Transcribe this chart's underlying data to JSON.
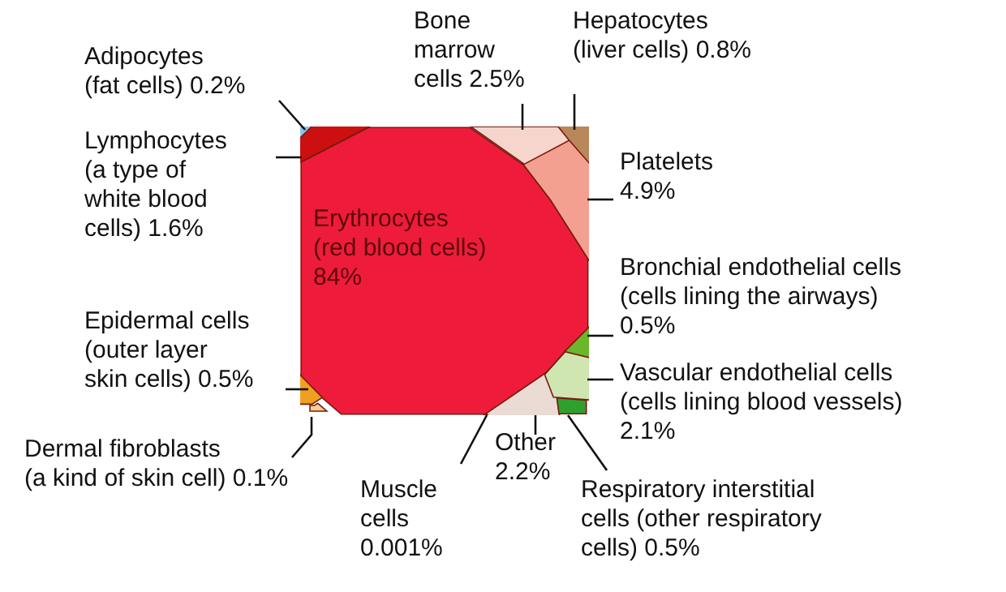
{
  "chart_data": {
    "type": "other",
    "categories": [
      "Adipocytes (fat cells)",
      "Bone marrow cells",
      "Hepatocytes (liver cells)",
      "Lymphocytes (a type of white blood cells)",
      "Platelets",
      "Erythrocytes (red blood cells)",
      "Bronchial endothelial cells (cells lining the airways)",
      "Epidermal cells (outer layer skin cells)",
      "Vascular endothelial cells (cells lining blood vessels)",
      "Dermal fibroblasts (a kind of skin cell)",
      "Muscle cells",
      "Other",
      "Respiratory interstitial cells (other respiratory cells)"
    ],
    "values": [
      0.2,
      2.5,
      0.8,
      1.6,
      4.9,
      84,
      0.5,
      0.5,
      2.1,
      0.1,
      0.001,
      2.2,
      0.5
    ],
    "value_labels": [
      "0.2%",
      "2.5%",
      "0.8%",
      "1.6%",
      "4.9%",
      "84%",
      "0.5%",
      "0.5%",
      "2.1%",
      "0.1%",
      "0.001%",
      "2.2%",
      "0.5%"
    ],
    "colors": [
      "#8ec5e8",
      "#f5d5cc",
      "#b8875a",
      "#cc1010",
      "#f4a090",
      "#ee1c3a",
      "#6ab82a",
      "#f0a020",
      "#cfe6b0",
      "#f5d090",
      "#e8d0c8",
      "#eadcd4",
      "#2ea02e"
    ]
  }
}
